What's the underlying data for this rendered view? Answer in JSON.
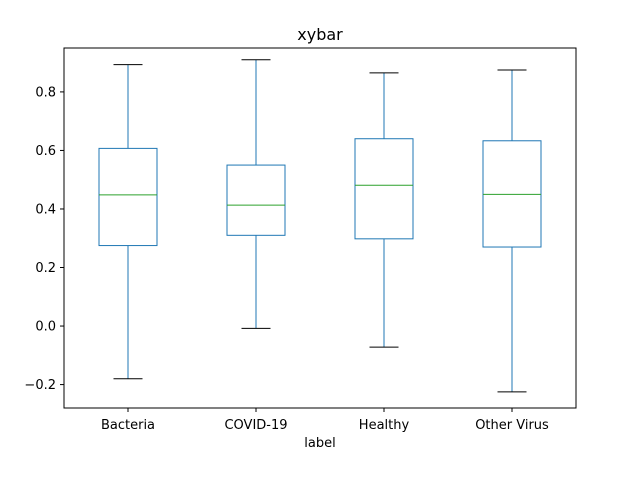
{
  "chart_data": {
    "type": "box",
    "title": "xybar",
    "xlabel": "label",
    "ylabel": "",
    "ylim": [
      -0.28,
      0.95
    ],
    "yticks": [
      -0.2,
      0.0,
      0.2,
      0.4,
      0.6,
      0.8
    ],
    "ytick_labels": [
      "−0.2",
      "0.0",
      "0.2",
      "0.4",
      "0.6",
      "0.8"
    ],
    "grid": false,
    "colors": {
      "box": "#1f77b4",
      "median": "#2ca02c",
      "whisker_cap": "#000000"
    },
    "categories": [
      "Bacteria",
      "COVID-19",
      "Healthy",
      "Other Virus"
    ],
    "boxes": [
      {
        "label": "Bacteria",
        "whisker_low": -0.18,
        "q1": 0.275,
        "median": 0.448,
        "q3": 0.607,
        "whisker_high": 0.893
      },
      {
        "label": "COVID-19",
        "whisker_low": -0.008,
        "q1": 0.31,
        "median": 0.413,
        "q3": 0.55,
        "whisker_high": 0.91
      },
      {
        "label": "Healthy",
        "whisker_low": -0.072,
        "q1": 0.298,
        "median": 0.481,
        "q3": 0.64,
        "whisker_high": 0.865
      },
      {
        "label": "Other Virus",
        "whisker_low": -0.225,
        "q1": 0.27,
        "median": 0.45,
        "q3": 0.633,
        "whisker_high": 0.875
      }
    ]
  }
}
